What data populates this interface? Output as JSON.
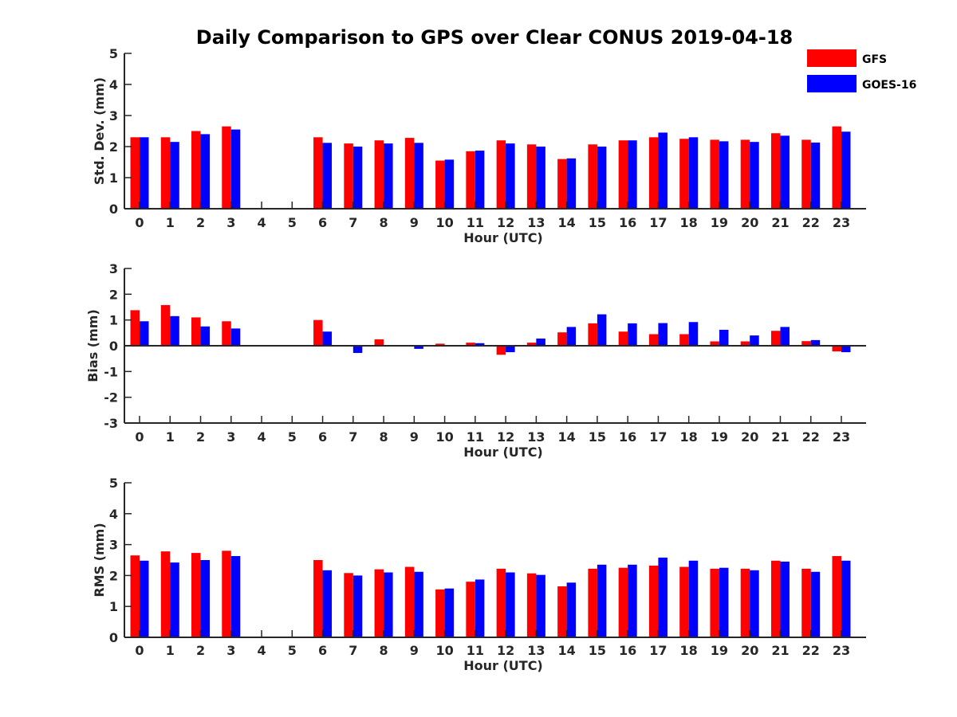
{
  "title": "Daily Comparison to GPS over Clear CONUS 2019-04-18",
  "colors": {
    "GFS": "#ff0000",
    "GOES-16": "#0000ff",
    "axis": "#262626"
  },
  "legend": [
    {
      "name": "GFS",
      "color": "#ff0000"
    },
    {
      "name": "GOES-16",
      "color": "#0000ff"
    }
  ],
  "chart_data": [
    {
      "type": "bar",
      "title": "Daily Comparison to GPS over Clear CONUS 2019-04-18",
      "xlabel": "Hour (UTC)",
      "ylabel": "Std. Dev. (mm)",
      "ylim": [
        0,
        5
      ],
      "yticks": [
        "0",
        "1",
        "2",
        "3",
        "4",
        "5"
      ],
      "categories": [
        "0",
        "1",
        "2",
        "3",
        "4",
        "5",
        "6",
        "7",
        "8",
        "9",
        "10",
        "11",
        "12",
        "13",
        "14",
        "15",
        "16",
        "17",
        "18",
        "19",
        "20",
        "21",
        "22",
        "23"
      ],
      "series": [
        {
          "name": "GFS",
          "values": [
            2.3,
            2.3,
            2.5,
            2.65,
            null,
            null,
            2.3,
            2.1,
            2.2,
            2.28,
            1.55,
            1.85,
            2.2,
            2.07,
            1.6,
            2.07,
            2.2,
            2.3,
            2.25,
            2.22,
            2.22,
            2.43,
            2.22,
            2.65
          ]
        },
        {
          "name": "GOES-16",
          "values": [
            2.3,
            2.15,
            2.4,
            2.55,
            null,
            null,
            2.12,
            2.0,
            2.1,
            2.12,
            1.58,
            1.87,
            2.1,
            2.0,
            1.62,
            2.0,
            2.2,
            2.45,
            2.3,
            2.17,
            2.15,
            2.35,
            2.13,
            2.48
          ]
        }
      ]
    },
    {
      "type": "bar",
      "xlabel": "Hour (UTC)",
      "ylabel": "Bias (mm)",
      "ylim": [
        -3,
        3
      ],
      "yticks": [
        "-3",
        "-2",
        "-1",
        "0",
        "1",
        "2",
        "3"
      ],
      "categories": [
        "0",
        "1",
        "2",
        "3",
        "4",
        "5",
        "6",
        "7",
        "8",
        "9",
        "10",
        "11",
        "12",
        "13",
        "14",
        "15",
        "16",
        "17",
        "18",
        "19",
        "20",
        "21",
        "22",
        "23"
      ],
      "series": [
        {
          "name": "GFS",
          "values": [
            1.38,
            1.58,
            1.1,
            0.95,
            null,
            null,
            1.0,
            0.0,
            0.25,
            0.02,
            0.08,
            0.12,
            -0.35,
            0.12,
            0.52,
            0.87,
            0.55,
            0.45,
            0.45,
            0.17,
            0.17,
            0.58,
            0.18,
            -0.22
          ]
        },
        {
          "name": "GOES-16",
          "values": [
            0.95,
            1.15,
            0.75,
            0.67,
            null,
            null,
            0.55,
            -0.28,
            0.0,
            -0.12,
            0.02,
            0.1,
            -0.25,
            0.28,
            0.73,
            1.22,
            0.87,
            0.88,
            0.92,
            0.62,
            0.4,
            0.73,
            0.22,
            -0.25
          ]
        }
      ]
    },
    {
      "type": "bar",
      "xlabel": "Hour (UTC)",
      "ylabel": "RMS (mm)",
      "ylim": [
        0,
        5
      ],
      "yticks": [
        "0",
        "1",
        "2",
        "3",
        "4",
        "5"
      ],
      "categories": [
        "0",
        "1",
        "2",
        "3",
        "4",
        "5",
        "6",
        "7",
        "8",
        "9",
        "10",
        "11",
        "12",
        "13",
        "14",
        "15",
        "16",
        "17",
        "18",
        "19",
        "20",
        "21",
        "22",
        "23"
      ],
      "series": [
        {
          "name": "GFS",
          "values": [
            2.65,
            2.78,
            2.73,
            2.8,
            null,
            null,
            2.5,
            2.08,
            2.2,
            2.28,
            1.55,
            1.8,
            2.22,
            2.07,
            1.65,
            2.22,
            2.25,
            2.32,
            2.28,
            2.22,
            2.22,
            2.48,
            2.22,
            2.63
          ]
        },
        {
          "name": "GOES-16",
          "values": [
            2.48,
            2.42,
            2.5,
            2.63,
            null,
            null,
            2.17,
            2.0,
            2.1,
            2.12,
            1.58,
            1.87,
            2.1,
            2.02,
            1.77,
            2.35,
            2.35,
            2.58,
            2.48,
            2.25,
            2.17,
            2.45,
            2.12,
            2.48
          ]
        }
      ]
    }
  ]
}
